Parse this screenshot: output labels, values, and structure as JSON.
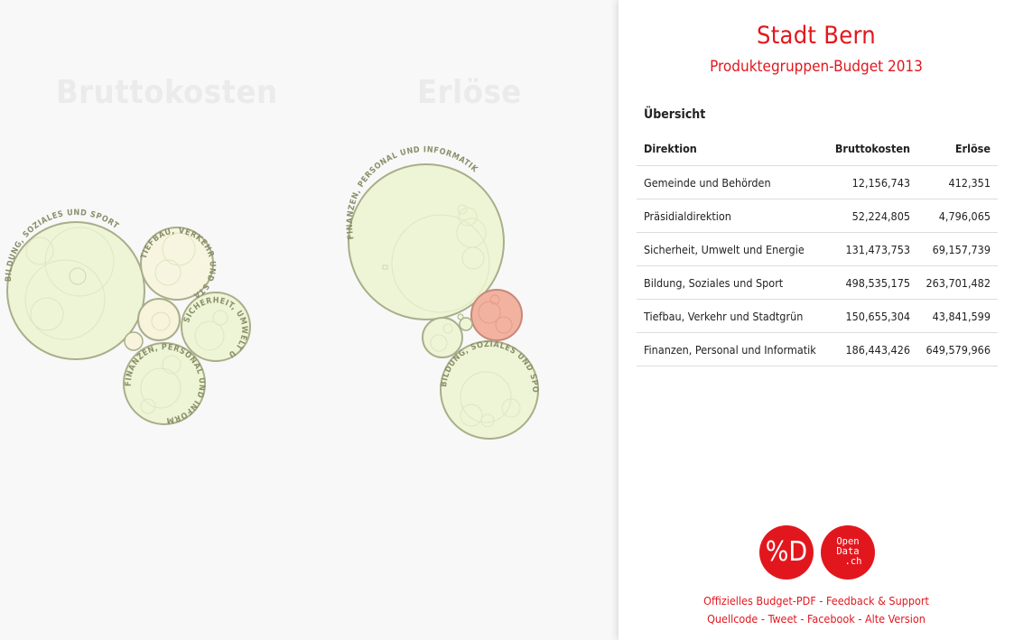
{
  "viz": {
    "title_brutto": "Bruttokosten",
    "title_erloese": "Erlöse",
    "bubble_labels": {
      "b_bildung": "BILDUNG, SOZIALES UND SPORT",
      "b_tiefbau": "TIEFBAU, VERKEHR UND STADTG",
      "b_sicherheit": "SICHERHEIT, UMWELT UND EN",
      "b_finanzen": "FINANZEN, PERSONAL UND INFORMA",
      "e_finanzen": "FINANZEN, PERSONAL UND INFORMATIK",
      "e_bildung": "BILDUNG, SOZIALES UND SPORT"
    }
  },
  "panel": {
    "title": "Stadt Bern",
    "subtitle": "Produktegruppen-Budget 2013",
    "overview_label": "Übersicht",
    "columns": [
      "Direktion",
      "Bruttokosten",
      "Erlöse"
    ],
    "rows": [
      [
        "Gemeinde und Behörden",
        "12,156,743",
        "412,351"
      ],
      [
        "Präsidialdirektion",
        "52,224,805",
        "4,796,065"
      ],
      [
        "Sicherheit, Umwelt und Energie",
        "131,473,753",
        "69,157,739"
      ],
      [
        "Bildung, Soziales und Sport",
        "498,535,175",
        "263,701,482"
      ],
      [
        "Tiefbau, Verkehr und Stadtgrün",
        "150,655,304",
        "43,841,599"
      ],
      [
        "Finanzen, Personal und Informatik",
        "186,443,426",
        "649,579,966"
      ]
    ],
    "logos": {
      "opendata_glyph": "%D",
      "opendata_ch_line1": "Open",
      "opendata_ch_line2": "Data",
      "opendata_ch_line3": ".ch"
    },
    "links": {
      "budget_pdf": "Offizielles Budget-PDF",
      "feedback": "Feedback & Support",
      "source": "Quellcode",
      "tweet": "Tweet",
      "facebook": "Facebook",
      "old_version": "Alte Version",
      "separator": " - "
    }
  },
  "colors": {
    "accent": "#e2171e",
    "bubble_fill": "#eef5d6",
    "bubble_stroke": "#a9ae8a",
    "bubble_alt_fill": "#f8f3dc",
    "bubble_highlight_fill": "#f2b2a0",
    "bubble_highlight_stroke": "#c88878"
  }
}
